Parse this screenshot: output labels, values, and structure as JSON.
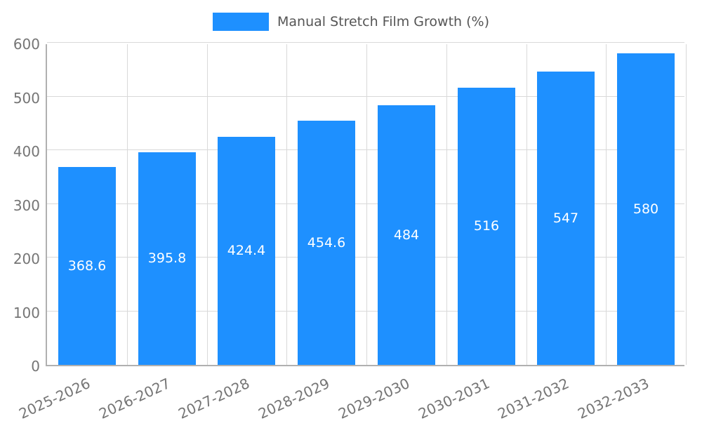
{
  "chart_data": {
    "type": "bar",
    "title": "Manual Stretch Film Growth (%)",
    "categories": [
      "2025-2026",
      "2026-2027",
      "2027-2028",
      "2028-2029",
      "2029-2030",
      "2030-2031",
      "2031-2032",
      "2032-2033"
    ],
    "values": [
      368.6,
      395.8,
      424.4,
      454.6,
      484,
      516,
      547,
      580
    ],
    "xlabel": "",
    "ylabel": "",
    "ylim": [
      0,
      600
    ],
    "yticks": [
      0,
      100,
      200,
      300,
      400,
      500,
      600
    ],
    "grid": true,
    "legend_position": "top",
    "bar_color": "#1E90FF",
    "value_label_color": "#ffffff"
  }
}
